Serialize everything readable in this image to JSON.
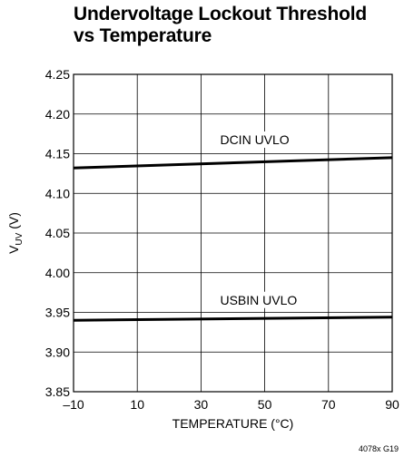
{
  "chart_data": {
    "type": "line",
    "title_lines": [
      "Undervoltage Lockout Threshold",
      "vs Temperature"
    ],
    "xlabel": "TEMPERATURE (°C)",
    "ylabel": {
      "main": "V",
      "sub": "UV",
      "unit": " (V)"
    },
    "xlim": [
      -10,
      90
    ],
    "ylim": [
      3.85,
      4.25
    ],
    "xticks": [
      -10,
      10,
      30,
      50,
      70,
      90
    ],
    "xtick_labels": [
      "–10",
      "10",
      "30",
      "50",
      "70",
      "90"
    ],
    "yticks": [
      3.85,
      3.9,
      3.95,
      4.0,
      4.05,
      4.1,
      4.15,
      4.2,
      4.25
    ],
    "ytick_labels": [
      "3.85",
      "3.90",
      "3.95",
      "4.00",
      "4.05",
      "4.10",
      "4.15",
      "4.20",
      "4.25"
    ],
    "grid": true,
    "series": [
      {
        "name": "DCIN UVLO",
        "x": [
          -10,
          90
        ],
        "y": [
          4.132,
          4.145
        ],
        "label_x": 36,
        "label_y": 4.162
      },
      {
        "name": "USBIN UVLO",
        "x": [
          -10,
          90
        ],
        "y": [
          3.94,
          3.944
        ],
        "label_x": 36,
        "label_y": 3.96
      }
    ],
    "figure_id": "4078x G19"
  }
}
